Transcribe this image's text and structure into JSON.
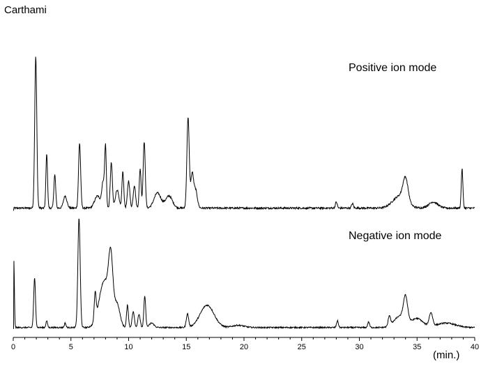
{
  "title": "Carthami",
  "chart_data": {
    "type": "line",
    "title": "Carthami",
    "xlabel": "(min.)",
    "ylabel": "",
    "xlim": [
      0,
      40
    ],
    "x_ticks": [
      0,
      5,
      10,
      15,
      20,
      25,
      30,
      35,
      40
    ],
    "tick_labels": [
      "0",
      "5",
      "10",
      "15",
      "20",
      "25",
      "30",
      "35",
      "40"
    ],
    "grid": false,
    "legend": "none",
    "line_color": "#000000",
    "series": [
      {
        "name": "Positive ion mode",
        "baseline": 0.03,
        "noise": 0.012,
        "peaks": [
          {
            "rt": 1.95,
            "height": 1.0,
            "width": 0.09
          },
          {
            "rt": 2.9,
            "height": 0.36,
            "width": 0.07
          },
          {
            "rt": 3.6,
            "height": 0.22,
            "width": 0.08
          },
          {
            "rt": 4.5,
            "height": 0.08,
            "width": 0.15
          },
          {
            "rt": 5.75,
            "height": 0.43,
            "width": 0.09
          },
          {
            "rt": 7.3,
            "height": 0.08,
            "width": 0.25
          },
          {
            "rt": 7.8,
            "height": 0.17,
            "width": 0.12
          },
          {
            "rt": 8.0,
            "height": 0.38,
            "width": 0.07
          },
          {
            "rt": 8.5,
            "height": 0.3,
            "width": 0.09
          },
          {
            "rt": 9.0,
            "height": 0.12,
            "width": 0.15
          },
          {
            "rt": 9.5,
            "height": 0.24,
            "width": 0.08
          },
          {
            "rt": 10.0,
            "height": 0.18,
            "width": 0.1
          },
          {
            "rt": 10.5,
            "height": 0.15,
            "width": 0.1
          },
          {
            "rt": 11.0,
            "height": 0.26,
            "width": 0.08
          },
          {
            "rt": 11.35,
            "height": 0.44,
            "width": 0.09
          },
          {
            "rt": 12.5,
            "height": 0.1,
            "width": 0.3
          },
          {
            "rt": 13.5,
            "height": 0.08,
            "width": 0.3
          },
          {
            "rt": 15.15,
            "height": 0.6,
            "width": 0.1
          },
          {
            "rt": 15.5,
            "height": 0.22,
            "width": 0.12
          },
          {
            "rt": 15.8,
            "height": 0.12,
            "width": 0.15
          },
          {
            "rt": 28.0,
            "height": 0.04,
            "width": 0.08
          },
          {
            "rt": 29.4,
            "height": 0.03,
            "width": 0.08
          },
          {
            "rt": 33.5,
            "height": 0.08,
            "width": 0.6
          },
          {
            "rt": 34.0,
            "height": 0.15,
            "width": 0.22
          },
          {
            "rt": 36.4,
            "height": 0.04,
            "width": 0.4
          },
          {
            "rt": 38.9,
            "height": 0.26,
            "width": 0.07
          }
        ]
      },
      {
        "name": "Negative ion mode",
        "baseline": 0.02,
        "noise": 0.012,
        "peaks": [
          {
            "rt": 0.05,
            "height": 0.6,
            "width": 0.05
          },
          {
            "rt": 1.85,
            "height": 0.44,
            "width": 0.08
          },
          {
            "rt": 2.9,
            "height": 0.06,
            "width": 0.07
          },
          {
            "rt": 4.5,
            "height": 0.04,
            "width": 0.07
          },
          {
            "rt": 5.7,
            "height": 0.98,
            "width": 0.1
          },
          {
            "rt": 7.1,
            "height": 0.24,
            "width": 0.08
          },
          {
            "rt": 7.9,
            "height": 0.42,
            "width": 0.45
          },
          {
            "rt": 8.45,
            "height": 0.5,
            "width": 0.18
          },
          {
            "rt": 9.0,
            "height": 0.2,
            "width": 0.25
          },
          {
            "rt": 9.9,
            "height": 0.2,
            "width": 0.08
          },
          {
            "rt": 10.4,
            "height": 0.14,
            "width": 0.1
          },
          {
            "rt": 10.9,
            "height": 0.12,
            "width": 0.1
          },
          {
            "rt": 11.4,
            "height": 0.28,
            "width": 0.08
          },
          {
            "rt": 12.0,
            "height": 0.04,
            "width": 0.2
          },
          {
            "rt": 15.1,
            "height": 0.12,
            "width": 0.1
          },
          {
            "rt": 16.8,
            "height": 0.2,
            "width": 0.6
          },
          {
            "rt": 19.5,
            "height": 0.02,
            "width": 0.5
          },
          {
            "rt": 28.1,
            "height": 0.06,
            "width": 0.08
          },
          {
            "rt": 30.8,
            "height": 0.05,
            "width": 0.08
          },
          {
            "rt": 32.6,
            "height": 0.09,
            "width": 0.1
          },
          {
            "rt": 33.5,
            "height": 0.1,
            "width": 0.5
          },
          {
            "rt": 34.0,
            "height": 0.22,
            "width": 0.18
          },
          {
            "rt": 35.0,
            "height": 0.08,
            "width": 0.5
          },
          {
            "rt": 36.2,
            "height": 0.12,
            "width": 0.15
          },
          {
            "rt": 37.5,
            "height": 0.04,
            "width": 0.8
          }
        ]
      }
    ]
  }
}
